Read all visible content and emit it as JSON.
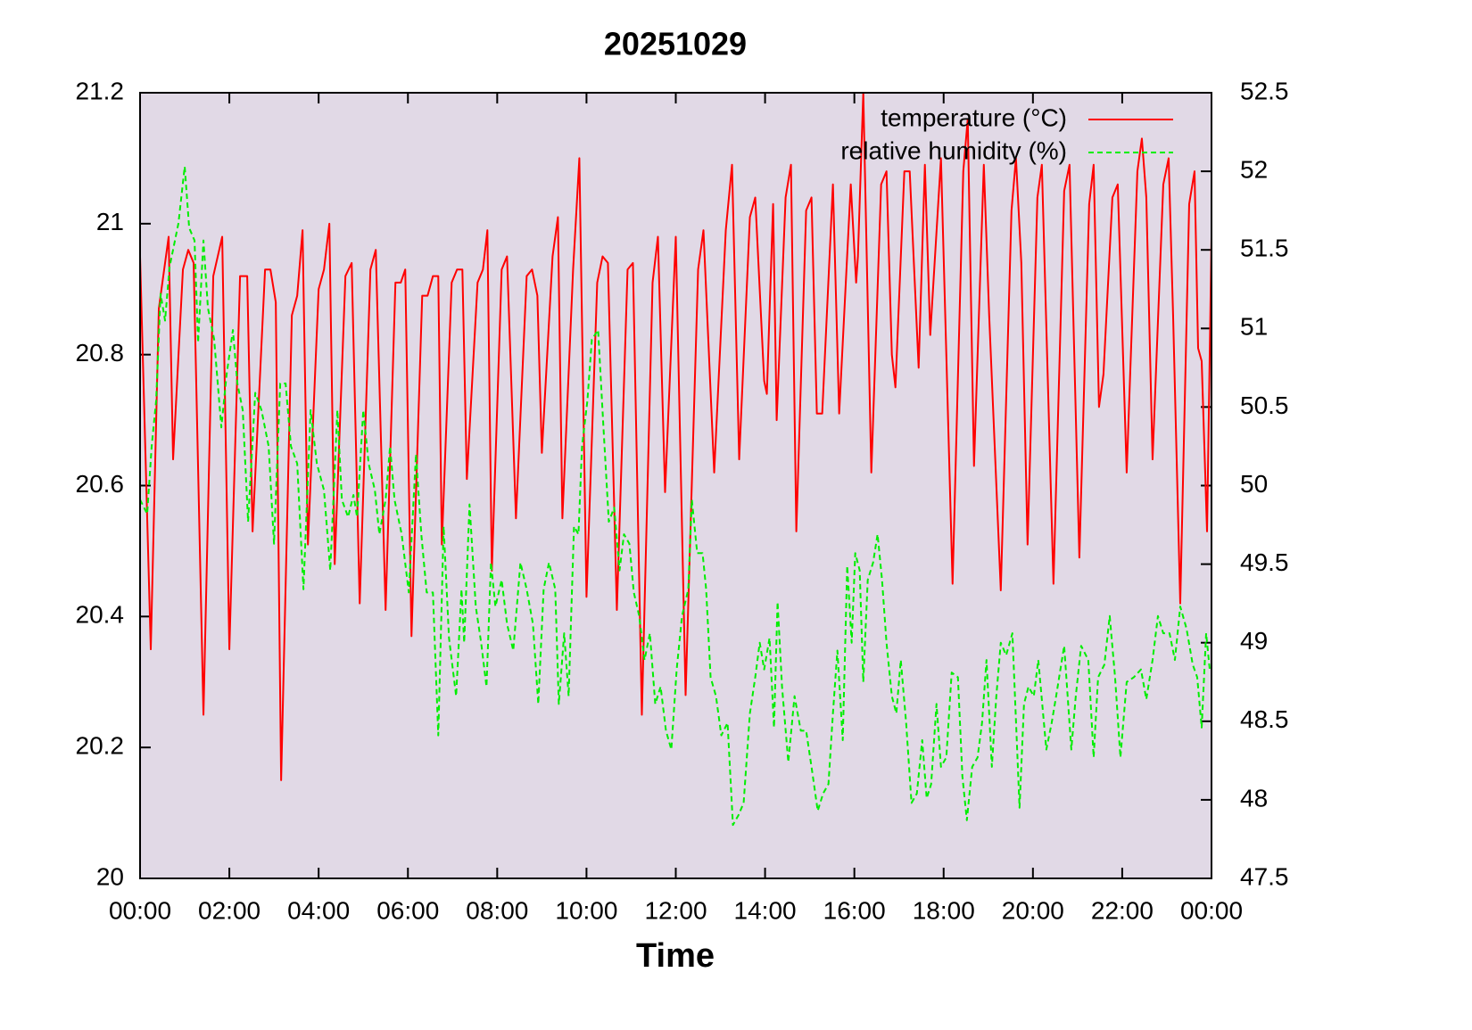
{
  "chart_data": {
    "type": "line",
    "title": "20251029",
    "xlabel": "Time",
    "xlim": [
      0,
      24
    ],
    "xticks": [
      {
        "value": 0,
        "label": "00:00"
      },
      {
        "value": 2,
        "label": "02:00"
      },
      {
        "value": 4,
        "label": "04:00"
      },
      {
        "value": 6,
        "label": "06:00"
      },
      {
        "value": 8,
        "label": "08:00"
      },
      {
        "value": 10,
        "label": "10:00"
      },
      {
        "value": 12,
        "label": "12:00"
      },
      {
        "value": 14,
        "label": "14:00"
      },
      {
        "value": 16,
        "label": "16:00"
      },
      {
        "value": 18,
        "label": "18:00"
      },
      {
        "value": 20,
        "label": "20:00"
      },
      {
        "value": 22,
        "label": "22:00"
      },
      {
        "value": 24,
        "label": "00:00"
      }
    ],
    "ylim": [
      20,
      21.2
    ],
    "yticks": [
      20,
      20.2,
      20.4,
      20.6,
      20.8,
      21,
      21.2
    ],
    "y2lim": [
      47.5,
      52.5
    ],
    "y2ticks": [
      47.5,
      48,
      48.5,
      49,
      49.5,
      50,
      50.5,
      51,
      51.5,
      52,
      52.5
    ],
    "grid": false,
    "legend": "top right",
    "background": "#e1d9e6",
    "series": [
      {
        "name": "temperature (°C)",
        "color": "#ff0000",
        "dash": false,
        "axis": "y",
        "x": [
          0.0,
          0.24,
          0.42,
          0.64,
          0.74,
          0.96,
          1.08,
          1.2,
          1.42,
          1.64,
          1.84,
          2.0,
          2.24,
          2.4,
          2.52,
          2.8,
          2.92,
          3.04,
          3.16,
          3.4,
          3.52,
          3.64,
          3.76,
          4.0,
          4.12,
          4.24,
          4.36,
          4.6,
          4.74,
          4.92,
          5.16,
          5.28,
          5.5,
          5.72,
          5.84,
          5.94,
          6.08,
          6.32,
          6.44,
          6.56,
          6.68,
          6.76,
          6.98,
          7.1,
          7.22,
          7.32,
          7.56,
          7.68,
          7.78,
          7.88,
          8.1,
          8.22,
          8.42,
          8.66,
          8.78,
          8.9,
          9.0,
          9.24,
          9.36,
          9.46,
          9.7,
          9.84,
          10.0,
          10.24,
          10.36,
          10.48,
          10.68,
          10.92,
          11.04,
          11.24,
          11.48,
          11.6,
          11.76,
          12.0,
          12.22,
          12.5,
          12.62,
          12.86,
          13.12,
          13.26,
          13.42,
          13.66,
          13.78,
          13.98,
          14.04,
          14.18,
          14.26,
          14.46,
          14.58,
          14.7,
          14.92,
          15.04,
          15.16,
          15.28,
          15.52,
          15.66,
          15.92,
          16.04,
          16.08,
          16.2,
          16.38,
          16.6,
          16.72,
          16.84,
          16.92,
          17.12,
          17.24,
          17.44,
          17.58,
          17.7,
          17.94,
          18.2,
          18.44,
          18.54,
          18.68,
          18.9,
          19.02,
          19.28,
          19.52,
          19.62,
          19.74,
          19.88,
          20.1,
          20.2,
          20.46,
          20.7,
          20.82,
          21.04,
          21.26,
          21.36,
          21.48,
          21.58,
          21.78,
          21.9,
          22.1,
          22.34,
          22.44,
          22.54,
          22.68,
          22.92,
          23.04,
          23.14,
          23.3,
          23.5,
          23.62,
          23.7,
          23.78,
          23.9,
          24.0
        ],
        "values": [
          20.95,
          20.35,
          20.87,
          20.98,
          20.64,
          20.93,
          20.96,
          20.94,
          20.25,
          20.92,
          20.98,
          20.35,
          20.92,
          20.92,
          20.53,
          20.93,
          20.93,
          20.88,
          20.15,
          20.86,
          20.89,
          20.99,
          20.51,
          20.9,
          20.93,
          21.0,
          20.48,
          20.92,
          20.94,
          20.42,
          20.93,
          20.96,
          20.41,
          20.91,
          20.91,
          20.93,
          20.37,
          20.89,
          20.89,
          20.92,
          20.92,
          20.51,
          20.91,
          20.93,
          20.93,
          20.61,
          20.91,
          20.93,
          20.99,
          20.47,
          20.93,
          20.95,
          20.55,
          20.92,
          20.93,
          20.89,
          20.65,
          20.95,
          21.01,
          20.55,
          20.93,
          21.1,
          20.43,
          20.91,
          20.95,
          20.94,
          20.41,
          20.93,
          20.94,
          20.25,
          20.91,
          20.98,
          20.59,
          20.98,
          20.28,
          20.93,
          20.99,
          20.62,
          20.99,
          21.09,
          20.64,
          21.01,
          21.04,
          20.76,
          20.74,
          21.03,
          20.7,
          21.04,
          21.09,
          20.53,
          21.02,
          21.04,
          20.71,
          20.71,
          21.06,
          20.71,
          21.06,
          20.91,
          20.95,
          21.2,
          20.62,
          21.06,
          21.08,
          20.8,
          20.75,
          21.08,
          21.08,
          20.78,
          21.09,
          20.83,
          21.1,
          20.45,
          21.08,
          21.16,
          20.63,
          21.09,
          20.86,
          20.44,
          21.02,
          21.1,
          20.94,
          20.51,
          21.04,
          21.09,
          20.45,
          21.05,
          21.09,
          20.49,
          21.03,
          21.09,
          20.72,
          20.77,
          21.04,
          21.06,
          20.62,
          21.08,
          21.13,
          21.04,
          20.64,
          21.06,
          21.1,
          20.86,
          20.42,
          21.03,
          21.08,
          20.81,
          20.79,
          20.53,
          20.98
        ]
      },
      {
        "name": "relative humidity (%)",
        "color": "#00ee00",
        "dash": true,
        "axis": "y2",
        "x": [
          0.0,
          0.16,
          0.26,
          0.36,
          0.46,
          0.56,
          0.66,
          0.86,
          1.0,
          1.1,
          1.22,
          1.3,
          1.42,
          1.52,
          1.66,
          1.82,
          1.94,
          2.08,
          2.18,
          2.3,
          2.42,
          2.58,
          2.72,
          2.88,
          3.0,
          3.14,
          3.26,
          3.38,
          3.52,
          3.66,
          3.82,
          3.96,
          4.12,
          4.26,
          4.42,
          4.52,
          4.66,
          4.78,
          4.86,
          5.0,
          5.12,
          5.26,
          5.36,
          5.5,
          5.6,
          5.7,
          5.86,
          6.02,
          6.18,
          6.3,
          6.42,
          6.56,
          6.68,
          6.8,
          6.92,
          7.08,
          7.2,
          7.26,
          7.38,
          7.52,
          7.64,
          7.76,
          7.86,
          7.96,
          8.1,
          8.22,
          8.36,
          8.52,
          8.66,
          8.8,
          8.92,
          9.04,
          9.16,
          9.3,
          9.38,
          9.5,
          9.6,
          9.72,
          9.82,
          9.9,
          10.02,
          10.12,
          10.26,
          10.38,
          10.5,
          10.62,
          10.74,
          10.84,
          10.96,
          11.06,
          11.18,
          11.3,
          11.42,
          11.54,
          11.66,
          11.78,
          11.9,
          12.02,
          12.14,
          12.28,
          12.36,
          12.48,
          12.6,
          12.68,
          12.78,
          12.9,
          13.02,
          13.16,
          13.28,
          13.4,
          13.52,
          13.66,
          13.78,
          13.88,
          13.98,
          14.1,
          14.2,
          14.28,
          14.38,
          14.52,
          14.66,
          14.8,
          14.92,
          15.04,
          15.18,
          15.3,
          15.42,
          15.52,
          15.62,
          15.74,
          15.84,
          15.94,
          16.02,
          16.12,
          16.2,
          16.3,
          16.42,
          16.52,
          16.62,
          16.72,
          16.84,
          16.94,
          17.04,
          17.16,
          17.28,
          17.4,
          17.52,
          17.62,
          17.72,
          17.84,
          17.94,
          18.06,
          18.18,
          18.32,
          18.42,
          18.52,
          18.64,
          18.76,
          18.86,
          18.96,
          19.08,
          19.18,
          19.28,
          19.4,
          19.54,
          19.7,
          19.8,
          19.9,
          20.02,
          20.12,
          20.3,
          20.42,
          20.52,
          20.7,
          20.86,
          20.96,
          21.08,
          21.24,
          21.36,
          21.46,
          21.6,
          21.72,
          21.84,
          21.96,
          22.1,
          22.26,
          22.42,
          22.54,
          22.68,
          22.8,
          22.92,
          23.06,
          23.18,
          23.3,
          23.44,
          23.58,
          23.68,
          23.78,
          23.88,
          23.96
        ],
        "values": [
          49.91,
          49.82,
          50.25,
          50.54,
          51.22,
          51.05,
          51.39,
          51.67,
          52.03,
          51.64,
          51.56,
          50.91,
          51.56,
          51.13,
          50.93,
          50.37,
          50.71,
          50.99,
          50.65,
          50.48,
          49.77,
          50.59,
          50.48,
          50.25,
          49.63,
          50.65,
          50.65,
          50.25,
          50.14,
          49.34,
          50.48,
          50.14,
          49.97,
          49.46,
          50.48,
          49.91,
          49.8,
          49.94,
          49.8,
          50.48,
          50.14,
          49.97,
          49.69,
          49.91,
          50.25,
          49.91,
          49.69,
          49.32,
          50.2,
          49.69,
          49.32,
          49.32,
          48.41,
          49.74,
          49.03,
          48.66,
          49.34,
          49.0,
          49.88,
          49.23,
          49.0,
          48.72,
          49.51,
          49.23,
          49.4,
          49.12,
          48.95,
          49.51,
          49.34,
          49.12,
          48.61,
          49.34,
          49.51,
          49.34,
          48.61,
          49.06,
          48.66,
          49.74,
          49.69,
          50.25,
          50.54,
          50.93,
          50.99,
          50.37,
          49.77,
          49.86,
          49.46,
          49.69,
          49.63,
          49.32,
          49.17,
          48.89,
          49.06,
          48.61,
          48.72,
          48.44,
          48.32,
          48.83,
          49.17,
          49.34,
          49.91,
          49.57,
          49.57,
          49.34,
          48.78,
          48.66,
          48.41,
          48.49,
          47.84,
          47.9,
          47.98,
          48.55,
          48.78,
          49.0,
          48.83,
          49.03,
          48.46,
          49.26,
          48.72,
          48.24,
          48.66,
          48.44,
          48.44,
          48.21,
          47.93,
          48.04,
          48.1,
          48.55,
          48.95,
          48.38,
          49.49,
          49.0,
          49.57,
          49.46,
          48.75,
          49.4,
          49.51,
          49.69,
          49.4,
          49.0,
          48.66,
          48.55,
          48.89,
          48.49,
          47.98,
          48.04,
          48.38,
          48.01,
          48.1,
          48.61,
          48.21,
          48.27,
          48.81,
          48.78,
          48.15,
          47.87,
          48.21,
          48.27,
          48.49,
          48.89,
          48.21,
          48.66,
          49.0,
          48.92,
          49.06,
          47.95,
          48.61,
          48.72,
          48.66,
          48.89,
          48.32,
          48.49,
          48.66,
          48.98,
          48.32,
          48.66,
          48.98,
          48.89,
          48.27,
          48.78,
          48.86,
          49.17,
          48.78,
          48.27,
          48.75,
          48.78,
          48.83,
          48.64,
          48.89,
          49.17,
          49.06,
          49.06,
          48.89,
          49.23,
          49.09,
          48.86,
          48.78,
          48.46,
          49.06,
          48.83
        ]
      }
    ]
  }
}
